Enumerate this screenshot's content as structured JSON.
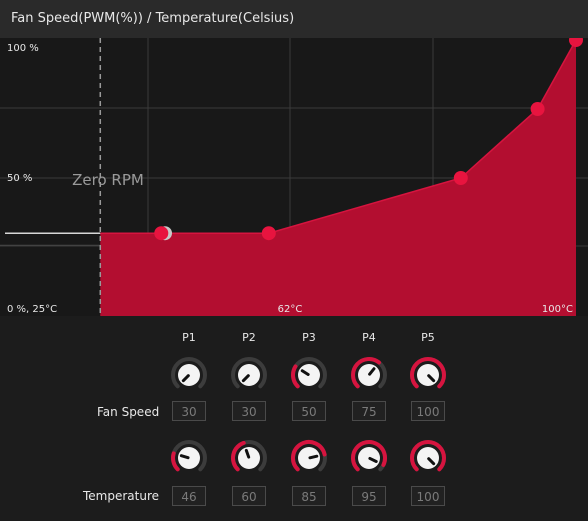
{
  "header": {
    "title": "Fan Speed(PWM(%)) / Temperature(Celsius)"
  },
  "chart_data": {
    "type": "area",
    "x_labels": [
      "0 %, 25°C",
      "62°C",
      "100°C"
    ],
    "y_labels": [
      "100 %",
      "50 %"
    ],
    "zero_rpm_label": "Zero RPM",
    "zero_rpm_speed": 30,
    "zero_rpm_threshold_temp": 46,
    "points": [
      {
        "name": "P1",
        "temp": 46,
        "speed": 30
      },
      {
        "name": "P2",
        "temp": 60,
        "speed": 30
      },
      {
        "name": "P3",
        "temp": 85,
        "speed": 50
      },
      {
        "name": "P4",
        "temp": 95,
        "speed": 75
      },
      {
        "name": "P5",
        "temp": 100,
        "speed": 100
      }
    ],
    "fill_color": "#b30e30",
    "point_color": "#e8143f"
  },
  "controls": {
    "columns": [
      "P1",
      "P2",
      "P3",
      "P4",
      "P5"
    ],
    "fan_speed_label": "Fan Speed",
    "temperature_label": "Temperature",
    "fan_speed": [
      "30",
      "30",
      "50",
      "75",
      "100"
    ],
    "temperature": [
      "46",
      "60",
      "85",
      "95",
      "100"
    ]
  },
  "colors": {
    "accent": "#d6143f",
    "knob_track": "#3c3c3c"
  }
}
